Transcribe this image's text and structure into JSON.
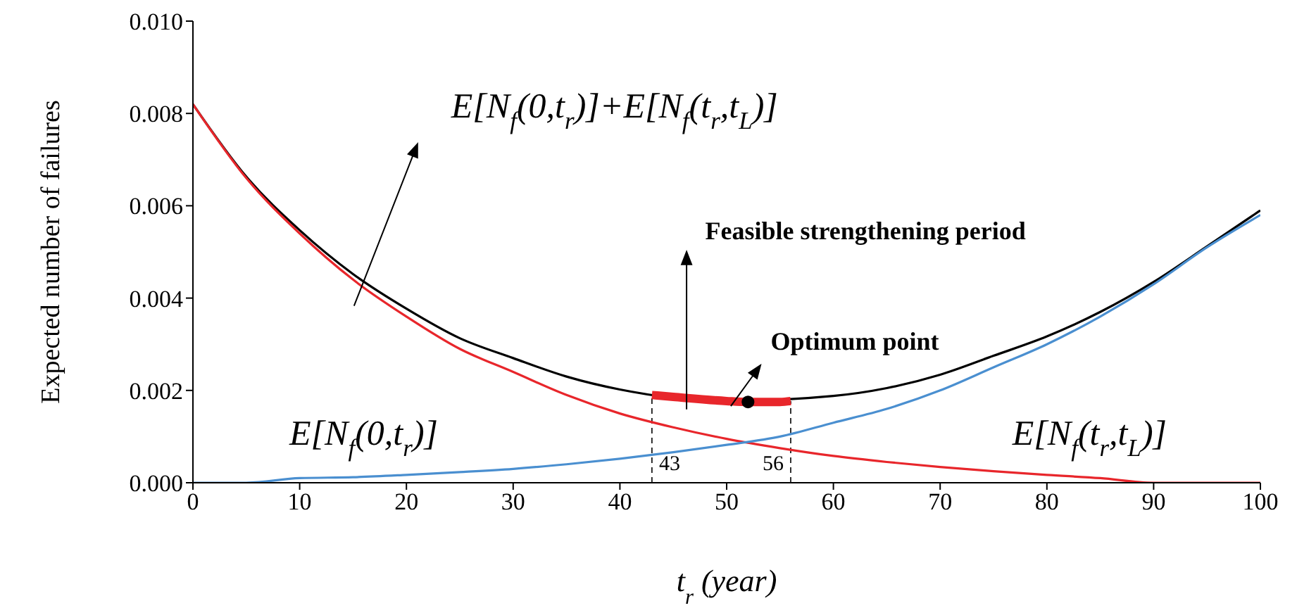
{
  "chart_data": {
    "type": "line",
    "xlabel": "t$_{r}$ (year)",
    "ylabel": "Expected number of failures",
    "x": [
      0,
      5,
      10,
      15,
      20,
      25,
      30,
      35,
      40,
      45,
      50,
      55,
      60,
      65,
      70,
      75,
      80,
      85,
      90,
      95,
      100
    ],
    "series": [
      {
        "color": "#000000",
        "values": [
          0.0082,
          0.00663,
          0.00547,
          0.00452,
          0.00377,
          0.00313,
          0.0027,
          0.0023,
          0.00202,
          null,
          0.00177,
          null,
          0.00188,
          0.00205,
          0.00234,
          0.00275,
          0.00317,
          0.0037,
          0.00435,
          0.00512,
          0.0059
        ]
      },
      {
        "color": "#e8262b",
        "values": [
          0.0082,
          0.0066,
          0.0054,
          0.0044,
          0.0036,
          0.0029,
          0.0024,
          0.0019,
          0.0015,
          0.0012,
          0.00095,
          0.00075,
          0.00058,
          0.00045,
          0.00034,
          0.00025,
          0.00017,
          0.0001,
          0,
          0,
          0
        ]
      },
      {
        "color": "#4a8fd0",
        "values": [
          0,
          0,
          0.0001,
          0.00012,
          0.00017,
          0.00023,
          0.0003,
          0.0004,
          0.00052,
          0.00066,
          0.00082,
          0.001,
          0.0013,
          0.0016,
          0.002,
          0.0025,
          0.003,
          0.0036,
          0.0043,
          0.0051,
          0.0058
        ]
      },
      {
        "color": "#e8262b",
        "x": [
          43,
          45,
          50,
          52,
          55,
          56
        ],
        "values": [
          0.0019,
          0.00186,
          0.00177,
          0.00175,
          0.00175,
          0.00177
        ]
      },
      {
        "type": "scatter",
        "color": "#000000",
        "marker": "circle",
        "x": [
          52
        ],
        "values": [
          0.00175
        ]
      }
    ],
    "xlim": [
      0,
      100
    ],
    "xticks": [
      0,
      10,
      20,
      30,
      40,
      50,
      60,
      70,
      80,
      90,
      100
    ],
    "ylim": [
      0,
      0.01
    ],
    "yticks": [
      {
        "value": 0,
        "label": "0.000"
      },
      {
        "value": 0.002,
        "label": "0.002"
      },
      {
        "value": 0.004,
        "label": "0.004"
      },
      {
        "value": 0.006,
        "label": "0.006"
      },
      {
        "value": 0.008,
        "label": "0.008"
      },
      {
        "value": 0.01,
        "label": "0.010"
      }
    ],
    "ref_lines": [
      {
        "axis": "x",
        "value": 43,
        "label": "43",
        "line_style": "dashed"
      },
      {
        "axis": "x",
        "value": 56,
        "label": "56",
        "line_style": "dashed"
      }
    ],
    "annotations": [
      "E[N$_{f}$(0,t$_{r}$)]+E[N$_{f}$(t$_{r}$,t$_{L}$)]",
      "E[N$_{f}$(0,t$_{r}$)]",
      "E[N$_{f}$(t$_{r}$,t$_{L}$)]",
      "Feasible strengthening period",
      "Optimum point"
    ],
    "grid": false,
    "legend": false
  }
}
